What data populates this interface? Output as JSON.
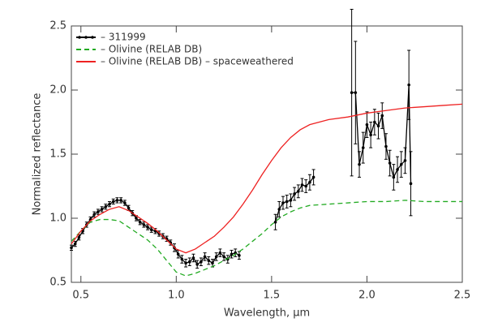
{
  "chart_data": {
    "type": "line",
    "xlabel": "Wavelength, μm",
    "ylabel": "Normalized reflectance",
    "xlim": [
      0.45,
      2.5
    ],
    "ylim": [
      0.5,
      2.5
    ],
    "xticks": [
      0.5,
      {
        "value": 1,
        "label": "1.0"
      },
      1.5,
      {
        "value": 2,
        "label": "2.0"
      },
      2.5
    ],
    "yticks": [
      0.5,
      {
        "value": 1,
        "label": "1.0"
      },
      1.5,
      {
        "value": 2,
        "label": "2.0"
      },
      2.5
    ],
    "legend": "upper left",
    "series": [
      {
        "name": "– 311999",
        "color": "#000000",
        "markers": true,
        "x": [
          0.45,
          0.47,
          0.49,
          0.51,
          0.53,
          0.55,
          0.57,
          0.59,
          0.61,
          0.63,
          0.65,
          0.67,
          0.69,
          0.71,
          0.73,
          0.75,
          0.77,
          0.79,
          0.81,
          0.83,
          0.85,
          0.87,
          0.89,
          0.91,
          0.93,
          0.95,
          0.97,
          0.99,
          1.01,
          1.03,
          1.05,
          1.07,
          1.09,
          1.11,
          1.13,
          1.15,
          1.17,
          1.19,
          1.21,
          1.23,
          1.25,
          1.27,
          1.29,
          1.31,
          1.33,
          1.42,
          1.52,
          1.54,
          1.56,
          1.58,
          1.6,
          1.62,
          1.64,
          1.66,
          1.68,
          1.7,
          1.72,
          1.82,
          1.92,
          1.94,
          1.96,
          1.98,
          2.0,
          2.02,
          2.04,
          2.06,
          2.08,
          2.1,
          2.12,
          2.14,
          2.16,
          2.18,
          2.2,
          2.22,
          2.23
        ],
        "values": [
          0.77,
          0.8,
          0.85,
          0.9,
          0.95,
          0.99,
          1.03,
          1.05,
          1.07,
          1.09,
          1.11,
          1.13,
          1.14,
          1.14,
          1.12,
          1.08,
          1.04,
          1.0,
          0.97,
          0.95,
          0.93,
          0.91,
          0.9,
          0.88,
          0.86,
          0.84,
          0.81,
          0.77,
          0.72,
          0.68,
          0.65,
          0.66,
          0.69,
          0.64,
          0.66,
          0.7,
          0.67,
          0.65,
          0.7,
          0.73,
          0.7,
          0.68,
          0.72,
          0.73,
          0.71,
          null,
          0.97,
          1.07,
          1.12,
          1.13,
          1.14,
          1.19,
          1.21,
          1.26,
          1.25,
          1.28,
          1.32,
          null,
          1.98,
          1.98,
          1.42,
          1.55,
          1.73,
          1.65,
          1.75,
          1.72,
          1.8,
          1.56,
          1.43,
          1.32,
          1.38,
          1.42,
          1.45,
          2.04,
          1.27
        ],
        "errors": [
          0.02,
          0.02,
          0.02,
          0.02,
          0.02,
          0.02,
          0.02,
          0.02,
          0.02,
          0.02,
          0.02,
          0.02,
          0.02,
          0.02,
          0.02,
          0.02,
          0.02,
          0.02,
          0.02,
          0.02,
          0.02,
          0.02,
          0.02,
          0.02,
          0.02,
          0.02,
          0.02,
          0.03,
          0.03,
          0.03,
          0.03,
          0.03,
          0.03,
          0.03,
          0.03,
          0.03,
          0.03,
          0.03,
          0.03,
          0.03,
          0.03,
          0.03,
          0.03,
          0.03,
          0.03,
          null,
          0.06,
          0.06,
          0.05,
          0.05,
          0.05,
          0.05,
          0.05,
          0.05,
          0.05,
          0.06,
          0.06,
          null,
          0.65,
          0.4,
          0.1,
          0.12,
          0.1,
          0.1,
          0.1,
          0.1,
          0.1,
          0.1,
          0.1,
          0.1,
          0.1,
          0.1,
          0.1,
          0.27,
          0.25
        ]
      },
      {
        "name": "– Olivine (RELAB DB)",
        "color": "#22aa22",
        "dashed": true,
        "x": [
          0.45,
          0.5,
          0.55,
          0.6,
          0.65,
          0.7,
          0.75,
          0.8,
          0.85,
          0.9,
          0.95,
          1.0,
          1.05,
          1.1,
          1.15,
          1.2,
          1.25,
          1.3,
          1.35,
          1.4,
          1.45,
          1.5,
          1.55,
          1.6,
          1.65,
          1.7,
          1.8,
          1.9,
          2.0,
          2.1,
          2.2,
          2.3,
          2.4,
          2.5
        ],
        "values": [
          0.82,
          0.9,
          0.97,
          0.99,
          0.99,
          0.98,
          0.93,
          0.88,
          0.83,
          0.76,
          0.67,
          0.58,
          0.55,
          0.57,
          0.6,
          0.63,
          0.67,
          0.71,
          0.76,
          0.82,
          0.88,
          0.95,
          1.01,
          1.05,
          1.08,
          1.1,
          1.11,
          1.12,
          1.13,
          1.13,
          1.14,
          1.13,
          1.13,
          1.13
        ]
      },
      {
        "name": "– Olivine (RELAB DB) – spaceweathered",
        "color": "#ee2222",
        "x": [
          0.45,
          0.5,
          0.55,
          0.6,
          0.65,
          0.7,
          0.75,
          0.8,
          0.85,
          0.9,
          0.95,
          1.0,
          1.05,
          1.1,
          1.15,
          1.2,
          1.25,
          1.3,
          1.35,
          1.4,
          1.45,
          1.5,
          1.55,
          1.6,
          1.65,
          1.7,
          1.8,
          1.9,
          2.0,
          2.1,
          2.2,
          2.3,
          2.4,
          2.5
        ],
        "values": [
          0.8,
          0.9,
          0.98,
          1.03,
          1.07,
          1.09,
          1.06,
          1.01,
          0.96,
          0.9,
          0.83,
          0.76,
          0.73,
          0.76,
          0.81,
          0.86,
          0.93,
          1.01,
          1.11,
          1.22,
          1.34,
          1.45,
          1.55,
          1.63,
          1.69,
          1.73,
          1.77,
          1.79,
          1.82,
          1.84,
          1.86,
          1.87,
          1.88,
          1.89
        ]
      }
    ]
  }
}
